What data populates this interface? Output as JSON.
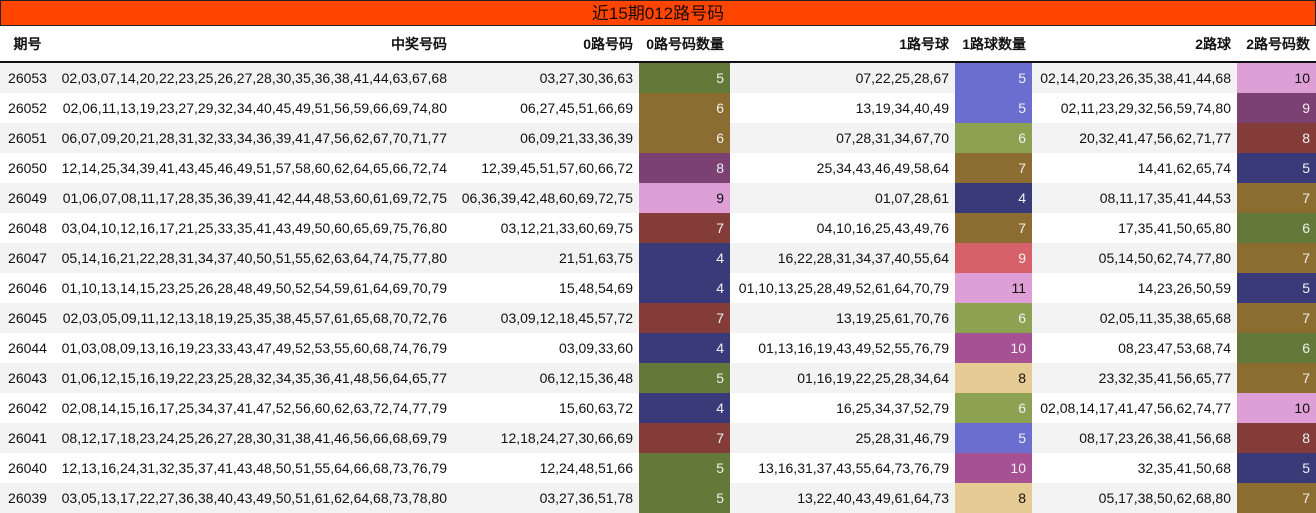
{
  "title": "近15期012路号码",
  "headers": [
    "期号",
    "中奖号码",
    "0路号码",
    "0路号码数量",
    "1路号球",
    "1路球数量",
    "2路球",
    "2路号码数"
  ],
  "rows": [
    {
      "issue": "26053",
      "winning": "02,03,07,14,20,22,23,25,26,27,28,30,35,36,38,41,44,63,67,68",
      "r0": "03,27,30,36,63",
      "c0": {
        "v": "5",
        "bg": "#637939"
      },
      "r1": "07,22,25,28,67",
      "c1": {
        "v": "5",
        "bg": "#6b6ecf"
      },
      "r2": "02,14,20,23,26,35,38,41,44,68",
      "c2": {
        "v": "10",
        "bg": "#de9ed6"
      }
    },
    {
      "issue": "26052",
      "winning": "02,06,11,13,19,23,27,29,32,34,40,45,49,51,56,59,66,69,74,80",
      "r0": "06,27,45,51,66,69",
      "c0": {
        "v": "6",
        "bg": "#8c6d31"
      },
      "r1": "13,19,34,40,49",
      "c1": {
        "v": "5",
        "bg": "#6b6ecf"
      },
      "r2": "02,11,23,29,32,56,59,74,80",
      "c2": {
        "v": "9",
        "bg": "#7b4173"
      }
    },
    {
      "issue": "26051",
      "winning": "06,07,09,20,21,28,31,32,33,34,36,39,41,47,56,62,67,70,71,77",
      "r0": "06,09,21,33,36,39",
      "c0": {
        "v": "6",
        "bg": "#8c6d31"
      },
      "r1": "07,28,31,34,67,70",
      "c1": {
        "v": "6",
        "bg": "#8ca252"
      },
      "r2": "20,32,41,47,56,62,71,77",
      "c2": {
        "v": "8",
        "bg": "#843c39"
      }
    },
    {
      "issue": "26050",
      "winning": "12,14,25,34,39,41,43,45,46,49,51,57,58,60,62,64,65,66,72,74",
      "r0": "12,39,45,51,57,60,66,72",
      "c0": {
        "v": "8",
        "bg": "#7b4173"
      },
      "r1": "25,34,43,46,49,58,64",
      "c1": {
        "v": "7",
        "bg": "#8c6d31"
      },
      "r2": "14,41,62,65,74",
      "c2": {
        "v": "5",
        "bg": "#393b79"
      }
    },
    {
      "issue": "26049",
      "winning": "01,06,07,08,11,17,28,35,36,39,41,42,44,48,53,60,61,69,72,75",
      "r0": "06,36,39,42,48,60,69,72,75",
      "c0": {
        "v": "9",
        "bg": "#de9ed6"
      },
      "r1": "01,07,28,61",
      "c1": {
        "v": "4",
        "bg": "#393b79"
      },
      "r2": "08,11,17,35,41,44,53",
      "c2": {
        "v": "7",
        "bg": "#8c6d31"
      }
    },
    {
      "issue": "26048",
      "winning": "03,04,10,12,16,17,21,25,33,35,41,43,49,50,60,65,69,75,76,80",
      "r0": "03,12,21,33,60,69,75",
      "c0": {
        "v": "7",
        "bg": "#843c39"
      },
      "r1": "04,10,16,25,43,49,76",
      "c1": {
        "v": "7",
        "bg": "#8c6d31"
      },
      "r2": "17,35,41,50,65,80",
      "c2": {
        "v": "6",
        "bg": "#637939"
      }
    },
    {
      "issue": "26047",
      "winning": "05,14,16,21,22,28,31,34,37,40,50,51,55,62,63,64,74,75,77,80",
      "r0": "21,51,63,75",
      "c0": {
        "v": "4",
        "bg": "#393b79"
      },
      "r1": "16,22,28,31,34,37,40,55,64",
      "c1": {
        "v": "9",
        "bg": "#d6616b"
      },
      "r2": "05,14,50,62,74,77,80",
      "c2": {
        "v": "7",
        "bg": "#8c6d31"
      }
    },
    {
      "issue": "26046",
      "winning": "01,10,13,14,15,23,25,26,28,48,49,50,52,54,59,61,64,69,70,79",
      "r0": "15,48,54,69",
      "c0": {
        "v": "4",
        "bg": "#393b79"
      },
      "r1": "01,10,13,25,28,49,52,61,64,70,79",
      "c1": {
        "v": "11",
        "bg": "#de9ed6"
      },
      "r2": "14,23,26,50,59",
      "c2": {
        "v": "5",
        "bg": "#393b79"
      }
    },
    {
      "issue": "26045",
      "winning": "02,03,05,09,11,12,13,18,19,25,35,38,45,57,61,65,68,70,72,76",
      "r0": "03,09,12,18,45,57,72",
      "c0": {
        "v": "7",
        "bg": "#843c39"
      },
      "r1": "13,19,25,61,70,76",
      "c1": {
        "v": "6",
        "bg": "#8ca252"
      },
      "r2": "02,05,11,35,38,65,68",
      "c2": {
        "v": "7",
        "bg": "#8c6d31"
      }
    },
    {
      "issue": "26044",
      "winning": "01,03,08,09,13,16,19,23,33,43,47,49,52,53,55,60,68,74,76,79",
      "r0": "03,09,33,60",
      "c0": {
        "v": "4",
        "bg": "#393b79"
      },
      "r1": "01,13,16,19,43,49,52,55,76,79",
      "c1": {
        "v": "10",
        "bg": "#a55194"
      },
      "r2": "08,23,47,53,68,74",
      "c2": {
        "v": "6",
        "bg": "#637939"
      }
    },
    {
      "issue": "26043",
      "winning": "01,06,12,15,16,19,22,23,25,28,32,34,35,36,41,48,56,64,65,77",
      "r0": "06,12,15,36,48",
      "c0": {
        "v": "5",
        "bg": "#637939"
      },
      "r1": "01,16,19,22,25,28,34,64",
      "c1": {
        "v": "8",
        "bg": "#e7cb94"
      },
      "r2": "23,32,35,41,56,65,77",
      "c2": {
        "v": "7",
        "bg": "#8c6d31"
      }
    },
    {
      "issue": "26042",
      "winning": "02,08,14,15,16,17,25,34,37,41,47,52,56,60,62,63,72,74,77,79",
      "r0": "15,60,63,72",
      "c0": {
        "v": "4",
        "bg": "#393b79"
      },
      "r1": "16,25,34,37,52,79",
      "c1": {
        "v": "6",
        "bg": "#8ca252"
      },
      "r2": "02,08,14,17,41,47,56,62,74,77",
      "c2": {
        "v": "10",
        "bg": "#de9ed6"
      }
    },
    {
      "issue": "26041",
      "winning": "08,12,17,18,23,24,25,26,27,28,30,31,38,41,46,56,66,68,69,79",
      "r0": "12,18,24,27,30,66,69",
      "c0": {
        "v": "7",
        "bg": "#843c39"
      },
      "r1": "25,28,31,46,79",
      "c1": {
        "v": "5",
        "bg": "#6b6ecf"
      },
      "r2": "08,17,23,26,38,41,56,68",
      "c2": {
        "v": "8",
        "bg": "#843c39"
      }
    },
    {
      "issue": "26040",
      "winning": "12,13,16,24,31,32,35,37,41,43,48,50,51,55,64,66,68,73,76,79",
      "r0": "12,24,48,51,66",
      "c0": {
        "v": "5",
        "bg": "#637939"
      },
      "r1": "13,16,31,37,43,55,64,73,76,79",
      "c1": {
        "v": "10",
        "bg": "#a55194"
      },
      "r2": "32,35,41,50,68",
      "c2": {
        "v": "5",
        "bg": "#393b79"
      }
    },
    {
      "issue": "26039",
      "winning": "03,05,13,17,22,27,36,38,40,43,49,50,51,61,62,64,68,73,78,80",
      "r0": "03,27,36,51,78",
      "c0": {
        "v": "5",
        "bg": "#637939"
      },
      "r1": "13,22,40,43,49,61,64,73",
      "c1": {
        "v": "8",
        "bg": "#e7cb94"
      },
      "r2": "05,17,38,50,62,68,80",
      "c2": {
        "v": "7",
        "bg": "#8c6d31"
      }
    }
  ]
}
